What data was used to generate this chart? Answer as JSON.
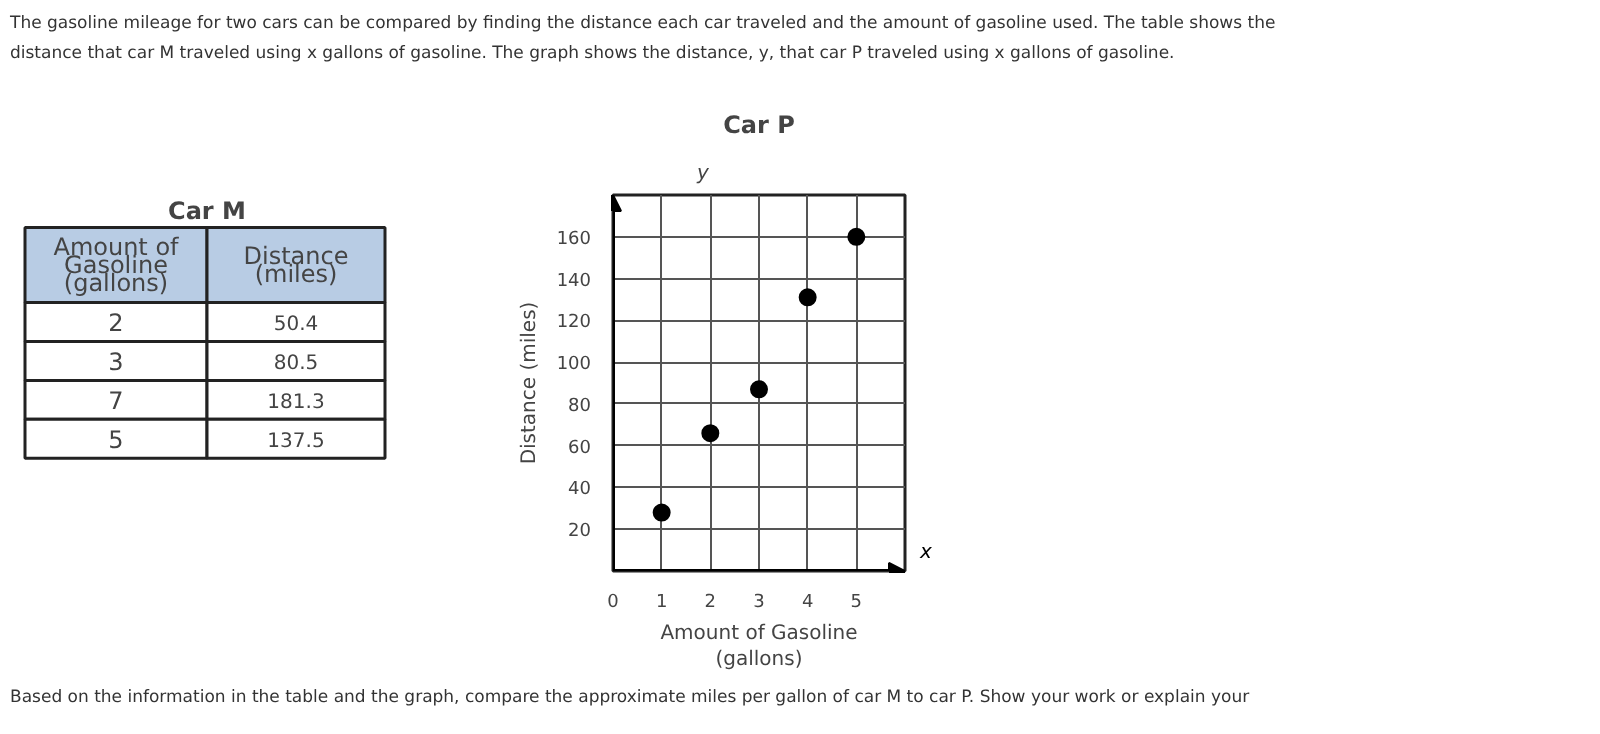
{
  "chart_data": [
    {
      "type": "other",
      "title": "Car M",
      "subtitle": "The gasoline mileage for two cars can be compared by finding the distance each car traveled and the amount of gasoline used. The table shows the\ndistance that car M traveled using x gallons of gasoline. The graph shows the distance, y, that car P traveled using x gallons of gasoline.",
      "annotations": [
        "Amount of\nGasoline\n(gallons)",
        "Distance\n(miles)",
        "2",
        "50.4",
        "3",
        "80.5",
        "7",
        "181.3",
        "5",
        "137.5"
      ]
    },
    {
      "type": "scatter",
      "title": "Car P",
      "xlabel": "Amount of Gasoline\n(gallons)",
      "ylabel": "Distance (miles)",
      "x": [
        1,
        2,
        3,
        4,
        5
      ],
      "values": [
        28,
        66,
        87,
        131,
        160
      ],
      "color": "#000000",
      "marker": "circle",
      "xlim": [
        0,
        6
      ],
      "ylim": [
        0,
        180
      ],
      "xticks": [
        0,
        1,
        2,
        3,
        4,
        5
      ],
      "yticks": [
        20,
        40,
        60,
        80,
        100,
        120,
        140,
        160
      ],
      "grid": true,
      "annotations": [
        "x",
        "y",
        "Based on the information in the table and the graph, compare the approximate miles per gallon of car M to car P. Show your work or explain your"
      ]
    }
  ]
}
